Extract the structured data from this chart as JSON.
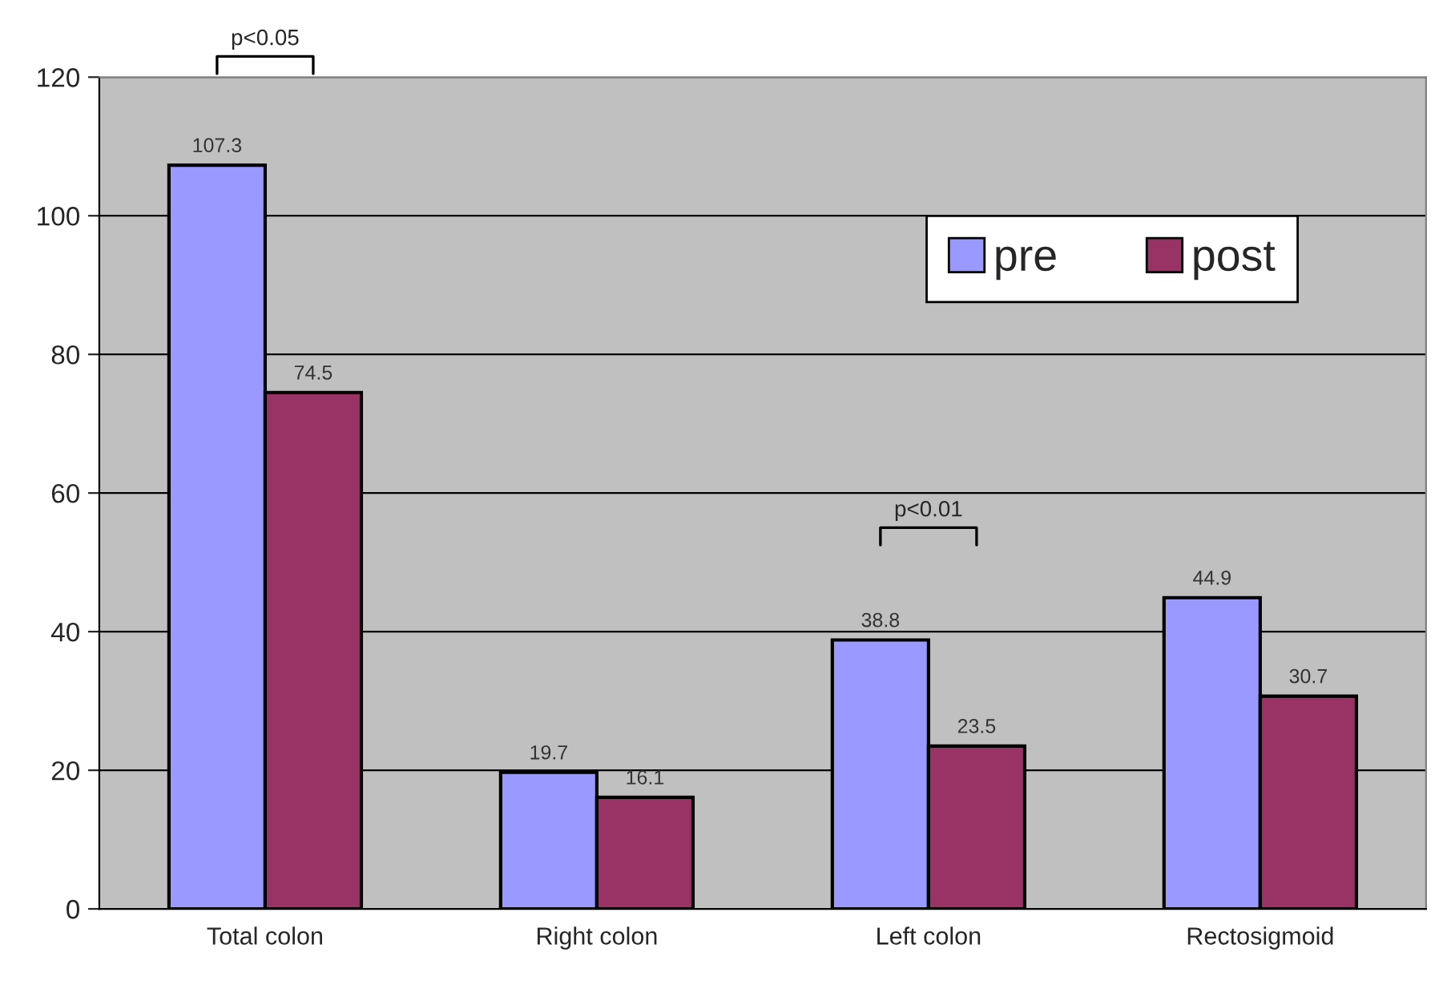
{
  "chart_data": {
    "type": "bar",
    "categories": [
      "Total colon",
      "Right colon",
      "Left colon",
      "Rectosigmoid"
    ],
    "series": [
      {
        "name": "pre",
        "color": "#9999ff",
        "values": [
          107.3,
          19.7,
          38.8,
          44.9
        ]
      },
      {
        "name": "post",
        "color": "#993366",
        "values": [
          74.5,
          16.1,
          23.5,
          30.7
        ]
      }
    ],
    "ylim": [
      0,
      120
    ],
    "yticks": [
      0,
      20,
      40,
      60,
      80,
      100,
      120
    ],
    "grid": "y",
    "legend": "top right",
    "data_labels": true,
    "annotations": [
      "p<0.05",
      "p<0.01"
    ]
  }
}
